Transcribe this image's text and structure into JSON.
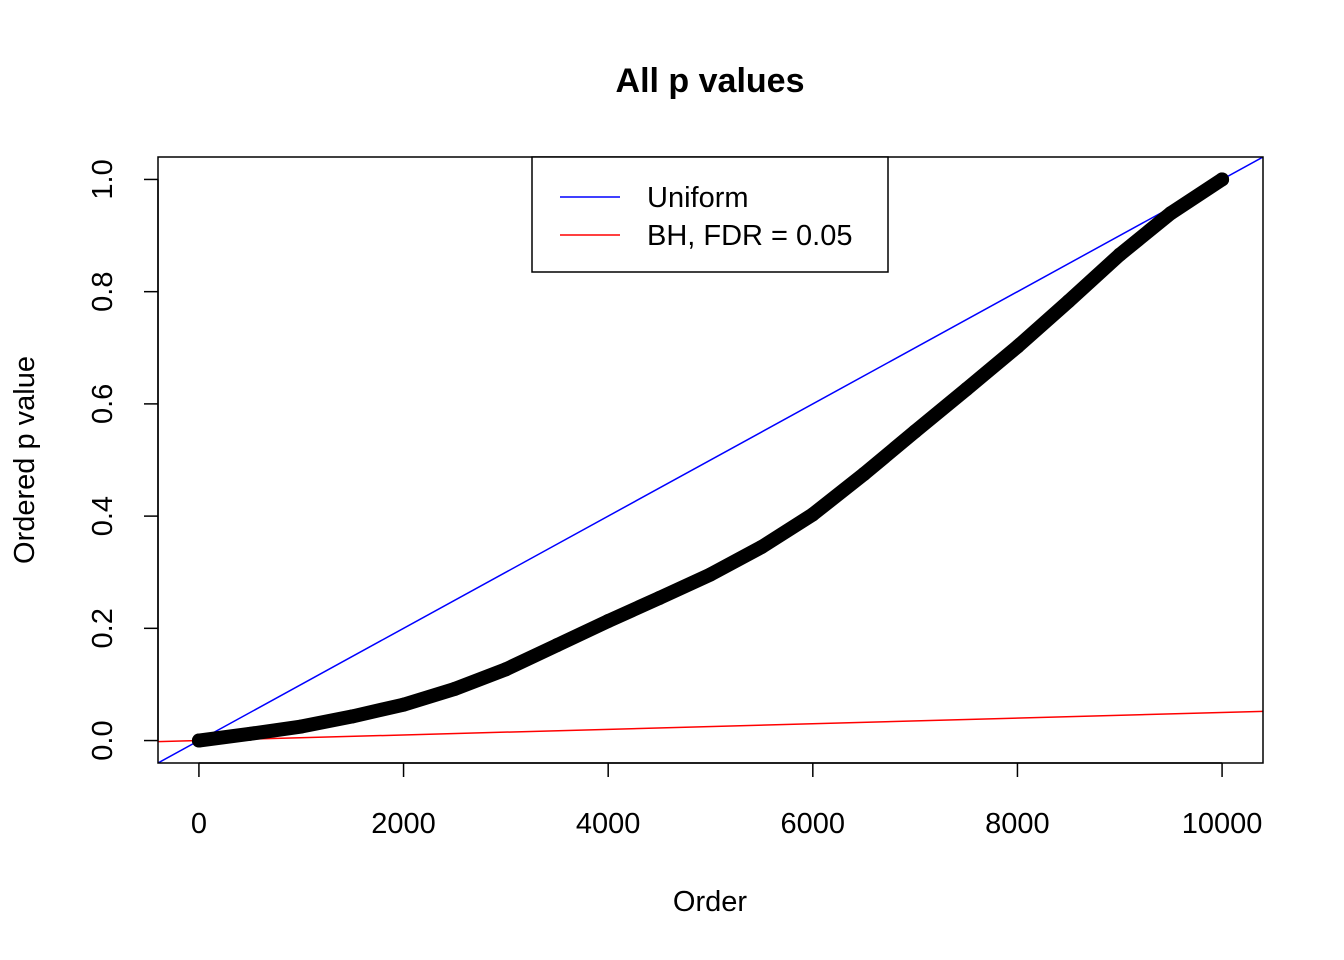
{
  "chart_data": {
    "type": "scatter",
    "title": "All p values",
    "xlabel": "Order",
    "ylabel": "Ordered p value",
    "xlim": [
      -400,
      10400
    ],
    "ylim": [
      -0.04,
      1.04
    ],
    "xticks": [
      0,
      2000,
      4000,
      6000,
      8000,
      10000
    ],
    "xtick_labels": [
      "0",
      "2000",
      "4000",
      "6000",
      "8000",
      "10000"
    ],
    "yticks": [
      0,
      0.2,
      0.4,
      0.6,
      0.8,
      1.0
    ],
    "ytick_labels": [
      "0.0",
      "0.2",
      "0.4",
      "0.6",
      "0.8",
      "1.0"
    ],
    "grid": false,
    "series": [
      {
        "name": "Ordered p values",
        "color": "#000000",
        "x": [
          0,
          500,
          1000,
          1500,
          2000,
          2500,
          3000,
          3500,
          4000,
          4500,
          5000,
          5500,
          6000,
          6500,
          7000,
          7500,
          8000,
          8500,
          9000,
          9500,
          10000
        ],
        "y": [
          0,
          0.012,
          0.025,
          0.043,
          0.064,
          0.092,
          0.127,
          0.17,
          0.213,
          0.254,
          0.296,
          0.345,
          0.403,
          0.475,
          0.551,
          0.626,
          0.702,
          0.783,
          0.866,
          0.94,
          1.0
        ]
      },
      {
        "name": "Uniform",
        "color": "#0000ff",
        "line": {
          "slope": 0.0001,
          "intercept": 0
        }
      },
      {
        "name": "BH, FDR = 0.05",
        "color": "#ff0000",
        "line": {
          "slope": 5e-06,
          "intercept": 0
        }
      }
    ],
    "legend": {
      "placement": "top-center",
      "entries": [
        "Uniform",
        "BH, FDR = 0.05"
      ]
    }
  }
}
